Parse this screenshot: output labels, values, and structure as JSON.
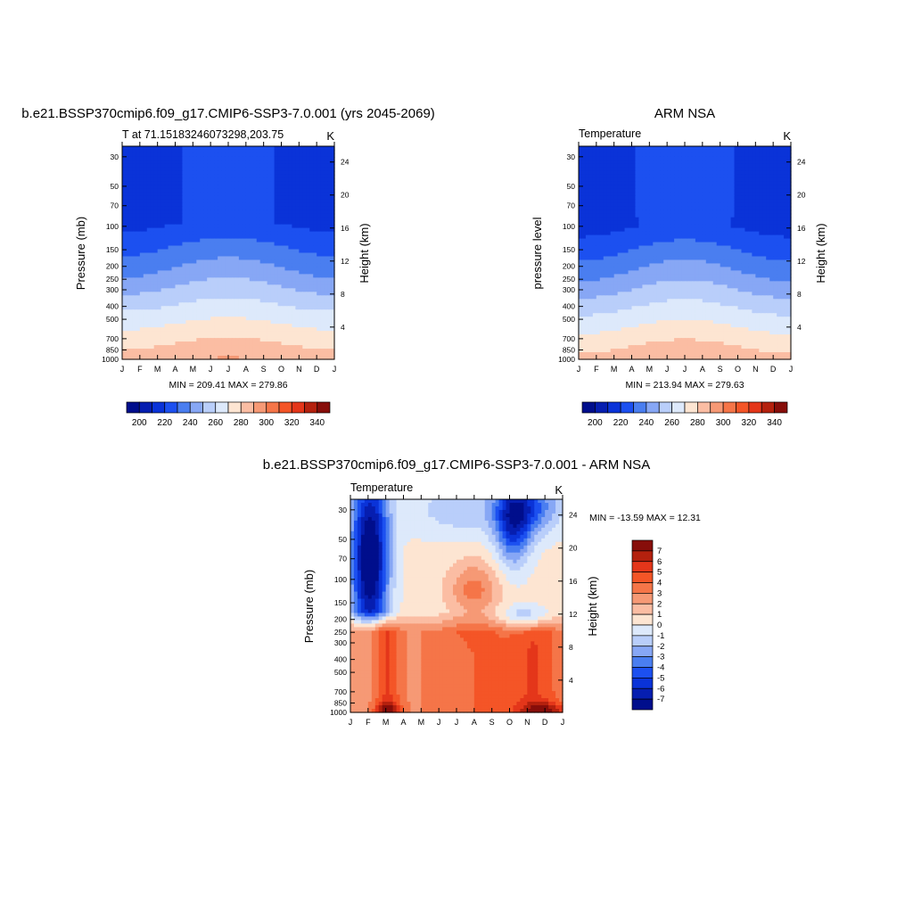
{
  "chart_data": [
    {
      "type": "heatmap",
      "title": "b.e21.BSSP370cmip6.f09_g17.CMIP6-SSP3-7.0.001 (yrs 2045-2069)",
      "left_label": "T at 71.15183246073298,203.75",
      "right_label": "K",
      "ylabel": "Pressure (mb)",
      "y2label": "Height (km)",
      "x_ticks": [
        "J",
        "F",
        "M",
        "A",
        "M",
        "J",
        "J",
        "A",
        "S",
        "O",
        "N",
        "D",
        "J"
      ],
      "y_ticks": [
        30,
        50,
        70,
        100,
        150,
        200,
        250,
        300,
        400,
        500,
        700,
        850,
        1000
      ],
      "y2_ticks": [
        24,
        20,
        16,
        12,
        8,
        4
      ],
      "ylim": [
        1000,
        25
      ],
      "stats_text": "MIN = 209.41 MAX = 279.86",
      "z_min": 209.41,
      "z_max": 279.86,
      "colorbar_labels": [
        "200",
        "220",
        "240",
        "260",
        "280",
        "300",
        "320",
        "340"
      ],
      "colorbar_levels": [
        190,
        200,
        210,
        220,
        230,
        240,
        250,
        260,
        270,
        280,
        290,
        300,
        310,
        320,
        330,
        340,
        350
      ],
      "colorbar_orientation": "horizontal"
    },
    {
      "type": "heatmap",
      "title": "ARM NSA",
      "left_label": "Temperature",
      "right_label": "K",
      "ylabel": "pressure level",
      "y2label": "Height (km)",
      "x_ticks": [
        "J",
        "F",
        "M",
        "A",
        "M",
        "J",
        "J",
        "A",
        "S",
        "O",
        "N",
        "D",
        "J"
      ],
      "y_ticks": [
        30,
        50,
        70,
        100,
        150,
        200,
        250,
        300,
        400,
        500,
        700,
        850,
        1000
      ],
      "y2_ticks": [
        24,
        20,
        16,
        12,
        8,
        4
      ],
      "ylim": [
        1000,
        25
      ],
      "stats_text": "MIN = 213.94 MAX = 279.63",
      "z_min": 213.94,
      "z_max": 279.63,
      "colorbar_labels": [
        "200",
        "220",
        "240",
        "260",
        "280",
        "300",
        "320",
        "340"
      ],
      "colorbar_levels": [
        190,
        200,
        210,
        220,
        230,
        240,
        250,
        260,
        270,
        280,
        290,
        300,
        310,
        320,
        330,
        340,
        350
      ],
      "colorbar_orientation": "horizontal"
    },
    {
      "type": "heatmap",
      "title": "b.e21.BSSP370cmip6.f09_g17.CMIP6-SSP3-7.0.001 - ARM NSA",
      "left_label": "Temperature",
      "right_label": "K",
      "ylabel": "Pressure (mb)",
      "y2label": "Height (km)",
      "x_ticks": [
        "J",
        "F",
        "M",
        "A",
        "M",
        "J",
        "J",
        "A",
        "S",
        "O",
        "N",
        "D",
        "J"
      ],
      "y_ticks": [
        30,
        50,
        70,
        100,
        150,
        200,
        250,
        300,
        400,
        500,
        700,
        850,
        1000
      ],
      "y2_ticks": [
        24,
        20,
        16,
        12,
        8,
        4
      ],
      "ylim": [
        1000,
        25
      ],
      "stats_text": "MIN = -13.59 MAX =  12.31",
      "z_min": -13.59,
      "z_max": 12.31,
      "colorbar_labels": [
        "7",
        "6",
        "5",
        "4",
        "3",
        "2",
        "1",
        "0",
        "-1",
        "-2",
        "-3",
        "-4",
        "-5",
        "-6",
        "-7"
      ],
      "colorbar_levels": [
        -7,
        -6,
        -5,
        -4,
        -3,
        -2,
        -1,
        0,
        1,
        2,
        3,
        4,
        5,
        6,
        7
      ],
      "colorbar_orientation": "vertical"
    }
  ],
  "colors": {
    "absolute_palette": [
      "#000e8c",
      "#061eb0",
      "#0a33d8",
      "#1c50f0",
      "#4a7ef0",
      "#87a7f5",
      "#b9cefa",
      "#dde9fb",
      "#fde5d2",
      "#fbbda3",
      "#f69975",
      "#f57548",
      "#f45527",
      "#e4361a",
      "#b4210e",
      "#870e0a"
    ],
    "diff_palette": [
      "#000e8c",
      "#061eb0",
      "#0a33d8",
      "#1c50f0",
      "#4a7ef0",
      "#87a7f5",
      "#b9cefa",
      "#dde9fb",
      "#fde5d2",
      "#fbbda3",
      "#f69975",
      "#f57548",
      "#f45527",
      "#e4361a",
      "#b4210e",
      "#870e0a"
    ]
  }
}
